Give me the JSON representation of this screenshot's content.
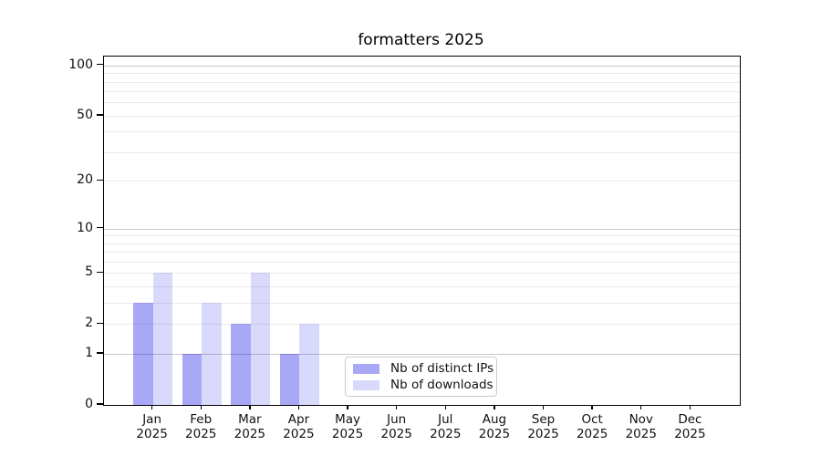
{
  "chart_data": {
    "type": "bar",
    "title": "formatters 2025",
    "categories": [
      "Jan",
      "Feb",
      "Mar",
      "Apr",
      "May",
      "Jun",
      "Jul",
      "Aug",
      "Sep",
      "Oct",
      "Nov",
      "Dec"
    ],
    "x_year_label": "2025",
    "series": [
      {
        "name": "Nb of distinct IPs",
        "color": "rgba(0,0,230,0.34)",
        "color_opaque_hex": "#aaaaf8",
        "values": [
          3,
          1,
          2,
          1,
          0,
          0,
          0,
          0,
          0,
          0,
          0,
          0
        ]
      },
      {
        "name": "Nb of downloads",
        "color": "rgba(0,0,230,0.15)",
        "color_opaque_hex": "#d9d9fa",
        "values": [
          5,
          3,
          5,
          2,
          0,
          0,
          0,
          0,
          0,
          0,
          0,
          0
        ]
      }
    ],
    "yscale": "log1p",
    "yticks": [
      0,
      1,
      2,
      5,
      10,
      20,
      50,
      100
    ],
    "ylim": [
      0,
      113
    ],
    "grid": {
      "major_values": [
        1,
        10,
        100
      ],
      "minor_values": [
        2,
        3,
        4,
        5,
        6,
        7,
        8,
        9,
        20,
        30,
        40,
        50,
        60,
        70,
        80,
        90
      ],
      "major_color": "#c9c9c9",
      "minor_color": "#ececec"
    },
    "legend_position": "lower center",
    "axis_color": "#000000",
    "background": "#ffffff"
  }
}
